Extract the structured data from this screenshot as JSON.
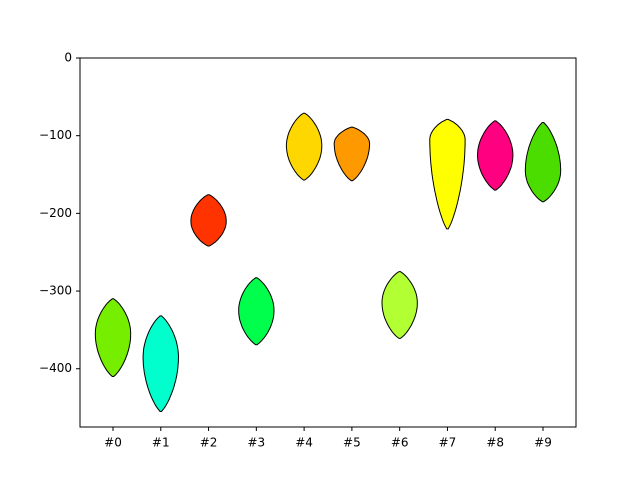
{
  "chart_data": {
    "type": "violin",
    "categories": [
      "#0",
      "#1",
      "#2",
      "#3",
      "#4",
      "#5",
      "#6",
      "#7",
      "#8",
      "#9"
    ],
    "violins": [
      {
        "min": -410,
        "mode": -355,
        "max": -310,
        "color": "#76ee00"
      },
      {
        "min": -455,
        "mode": -385,
        "max": -332,
        "color": "#00ffcc"
      },
      {
        "min": -242,
        "mode": -210,
        "max": -176,
        "color": "#ff3300"
      },
      {
        "min": -369,
        "mode": -325,
        "max": -283,
        "color": "#00ff4c"
      },
      {
        "min": -157,
        "mode": -113,
        "max": -71,
        "color": "#ffd700"
      },
      {
        "min": -158,
        "mode": -110,
        "max": -89,
        "color": "#ff9900"
      },
      {
        "min": -361,
        "mode": -315,
        "max": -275,
        "color": "#b2ff33"
      },
      {
        "min": -220,
        "mode": -105,
        "max": -79,
        "color": "#ffff00"
      },
      {
        "min": -170,
        "mode": -125,
        "max": -81,
        "color": "#ff0080"
      },
      {
        "min": -185,
        "mode": -145,
        "max": -83,
        "color": "#4cdd00"
      }
    ],
    "ylim": [
      -475,
      0
    ],
    "yticks": [
      {
        "value": -400,
        "label": "−400"
      },
      {
        "value": -300,
        "label": "−300"
      },
      {
        "value": -200,
        "label": "−200"
      },
      {
        "value": -100,
        "label": "−100"
      },
      0
    ],
    "grid": false
  }
}
